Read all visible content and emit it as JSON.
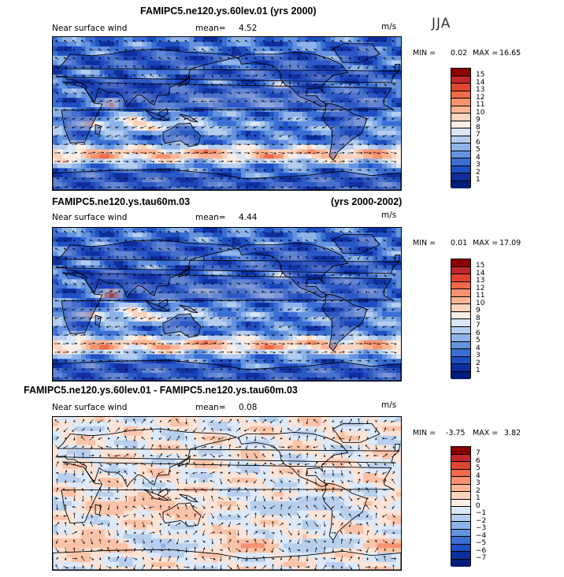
{
  "season": "JJA",
  "panels": [
    {
      "title": "FAMIPC5.ne120.ys.60lev.01 (yrs 2000)",
      "title_right": "",
      "variable": "Near surface wind",
      "mean_label": "mean=",
      "mean_value": "4.52",
      "units": "m/s",
      "min_label": "MIN =",
      "min_value": "0.02",
      "max_label": "MAX =",
      "max_value": "16.65",
      "field_type": "magnitude",
      "colorbar_labels": [
        "15",
        "14",
        "13",
        "12",
        "11",
        "10",
        "9",
        "8",
        "7",
        "6",
        "5",
        "4",
        "3",
        "2",
        "1"
      ],
      "colorbar_colors": [
        "#8b0000",
        "#c0272d",
        "#e0452f",
        "#f06a4a",
        "#f7926f",
        "#fbb595",
        "#fbd4bd",
        "#fbeee4",
        "#d8e6f7",
        "#b4cdef",
        "#8db3e8",
        "#6493e0",
        "#3a6fd4",
        "#1f4fc2",
        "#0d2e9c",
        "#001d7a"
      ]
    },
    {
      "title": "FAMIPC5.ne120.ys.tau60m.03",
      "title_right": "(yrs 2000-2002)",
      "variable": "Near surface wind",
      "mean_label": "mean=",
      "mean_value": "4.44",
      "units": "m/s",
      "min_label": "MIN =",
      "min_value": "0.01",
      "max_label": "MAX =",
      "max_value": "17.09",
      "field_type": "magnitude",
      "colorbar_labels": [
        "15",
        "14",
        "13",
        "12",
        "11",
        "10",
        "9",
        "8",
        "7",
        "6",
        "5",
        "4",
        "3",
        "2",
        "1"
      ],
      "colorbar_colors": [
        "#8b0000",
        "#c0272d",
        "#e0452f",
        "#f06a4a",
        "#f7926f",
        "#fbb595",
        "#fbd4bd",
        "#fbeee4",
        "#d8e6f7",
        "#b4cdef",
        "#8db3e8",
        "#6493e0",
        "#3a6fd4",
        "#1f4fc2",
        "#0d2e9c",
        "#001d7a"
      ]
    },
    {
      "title": "FAMIPC5.ne120.ys.60lev.01 - FAMIPC5.ne120.ys.tau60m.03",
      "title_right": "",
      "variable": "Near surface wind",
      "mean_label": "mean=",
      "mean_value": "0.08",
      "units": "m/s",
      "min_label": "MIN =",
      "min_value": "-3.75",
      "max_label": "MAX =",
      "max_value": "3.82",
      "field_type": "difference",
      "colorbar_labels": [
        "7",
        "6",
        "5",
        "4",
        "3",
        "2",
        "1",
        "0",
        "−1",
        "−2",
        "−3",
        "−4",
        "−5",
        "−6",
        "−7"
      ],
      "colorbar_colors": [
        "#8b0000",
        "#c0272d",
        "#e0452f",
        "#f06a4a",
        "#f7926f",
        "#fbb595",
        "#fbd4bd",
        "#fbeee4",
        "#dbe8f8",
        "#b4cdef",
        "#8db3e8",
        "#6493e0",
        "#3a6fd4",
        "#1f4fc2",
        "#0d2e9c",
        "#001d7a"
      ]
    }
  ]
}
